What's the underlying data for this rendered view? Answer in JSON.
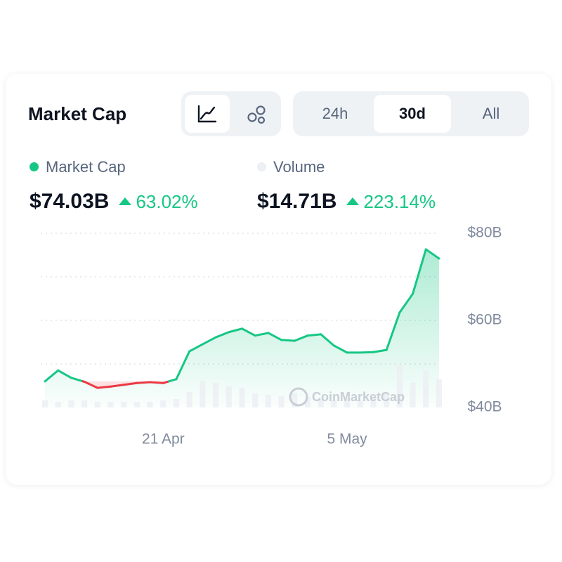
{
  "header": {
    "title": "Market Cap",
    "tabs": [
      "24h",
      "30d",
      "All"
    ],
    "active_tab": 1
  },
  "stats": [
    {
      "value": "$74.03B",
      "change": "63.02%",
      "dot_color": "#16c784"
    },
    {
      "value": "$14.71B",
      "change": "223.14%",
      "dot_color": "#eceff3"
    }
  ],
  "chart_data": {
    "type": "line",
    "categories": [
      null,
      null,
      null,
      null,
      null,
      null,
      null,
      null,
      null,
      "21 Apr",
      null,
      null,
      null,
      null,
      null,
      null,
      null,
      null,
      null,
      null,
      null,
      null,
      null,
      "5 May",
      null,
      null,
      null,
      null,
      null,
      null,
      null
    ],
    "series": [
      {
        "name": "Market Cap",
        "color": "#16c784",
        "down_color": "#ea3943",
        "values": [
          46.0,
          48.5,
          46.8,
          45.9,
          44.5,
          44.8,
          45.2,
          45.6,
          45.8,
          45.6,
          46.5,
          52.9,
          54.5,
          56.1,
          57.3,
          58.1,
          56.5,
          57.1,
          55.5,
          55.3,
          56.5,
          56.8,
          54.2,
          52.6,
          52.6,
          52.7,
          53.2,
          61.8,
          66.1,
          76.3,
          74.2
        ]
      },
      {
        "name": "Volume",
        "type": "bar",
        "color": "#eceff3",
        "values": [
          3.7,
          2.9,
          3.7,
          3.7,
          2.9,
          2.9,
          2.9,
          2.9,
          2.9,
          3.7,
          4.4,
          8.1,
          14,
          12.9,
          11,
          10.3,
          7.4,
          6.6,
          5.9,
          7.4,
          5.5,
          4.4,
          3.7,
          4.4,
          3.7,
          5.1,
          7.4,
          22,
          12.9,
          19.1,
          14.7
        ]
      }
    ],
    "ylim": [
      40,
      80
    ],
    "yticks": [
      {
        "value": 40,
        "label": "$40B"
      },
      {
        "value": 60,
        "label": "$60B"
      },
      {
        "value": 80,
        "label": "$80B"
      }
    ],
    "minor_yticks": [
      50,
      70
    ],
    "grid": true,
    "watermark": "CoinMarketCap"
  }
}
